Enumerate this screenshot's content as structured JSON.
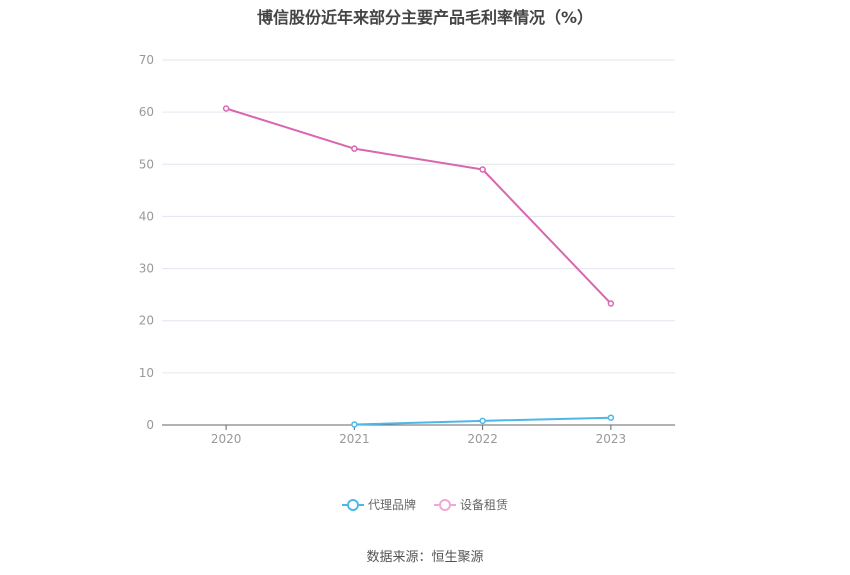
{
  "chart_data": {
    "type": "line",
    "title": "博信股份近年来部分主要产品毛利率情况（%）",
    "categories": [
      "2020",
      "2021",
      "2022",
      "2023"
    ],
    "ylim": [
      0,
      70
    ],
    "yticks": [
      0,
      10,
      20,
      30,
      40,
      50,
      60,
      70
    ],
    "grid": true,
    "legend_position": "bottom",
    "series": [
      {
        "name": "代理品牌",
        "color": "#4db8e8",
        "values": [
          null,
          0.1,
          0.8,
          1.4
        ]
      },
      {
        "name": "设备租赁",
        "color": "#d966b0",
        "values": [
          60.7,
          53.0,
          49.0,
          23.3
        ]
      }
    ]
  },
  "source": "数据来源：恒生聚源"
}
